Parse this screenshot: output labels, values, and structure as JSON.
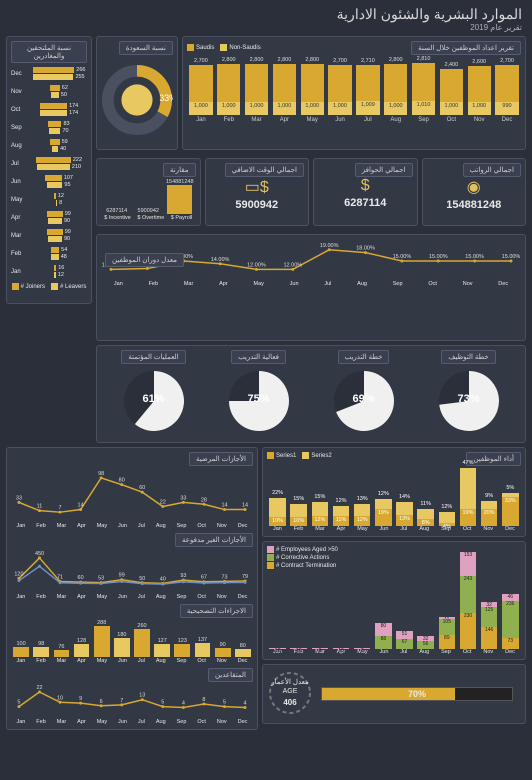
{
  "header": {
    "title": "الموارد البشرية والشئون الادارية",
    "subtitle": "تقرير عام 2019"
  },
  "months": [
    "Jan",
    "Feb",
    "Mar",
    "Apr",
    "May",
    "Jun",
    "Jul",
    "Aug",
    "Sep",
    "Oct",
    "Nov",
    "Dec"
  ],
  "colors": {
    "bg": "#2a2f3a",
    "panel": "#323844",
    "border": "#4a5060",
    "bar1": "#d8a830",
    "bar2": "#e8c860",
    "accent": "#e0c060",
    "line1": "#d8a830",
    "line2": "#7090c0",
    "text": "#e8e8e8",
    "pink": "#e0a0c0",
    "green": "#90b050"
  },
  "headcount": {
    "title": "تقرير اعداد الموظفين خلال السنة",
    "legend": [
      "Saudis",
      "Non-Saudis"
    ],
    "saudis": [
      2700,
      2800,
      2800,
      2800,
      2800,
      2700,
      2710,
      2800,
      2810,
      2400,
      2600,
      2700
    ],
    "nonsaudis": [
      1000,
      1000,
      1000,
      1000,
      1000,
      1000,
      1009,
      1000,
      1010,
      1000,
      1000,
      990
    ]
  },
  "saudization": {
    "title": "نسبة السعودة",
    "pct": 33
  },
  "kpis": {
    "payroll": {
      "title": "اجمالي الرواتب",
      "val": "154881248"
    },
    "incentive": {
      "title": "اجمالي الحوافز",
      "val": "6287114"
    },
    "overtime": {
      "title": "اجمالي الوقت الاضافي",
      "val": "5900942"
    },
    "compare": {
      "title": "مقارنة",
      "labels": [
        "$ Incentive",
        "$ Overtime",
        "$ Payroll"
      ],
      "vals": [
        6287114,
        5900942,
        154881248
      ]
    }
  },
  "turnover": {
    "title": "معدل دوران الموظفين",
    "vals": [
      12.0,
      12.3,
      15.0,
      14.0,
      12.0,
      12.0,
      19.0,
      18.0,
      15.0,
      15.0,
      15.0,
      15.0
    ]
  },
  "pies": {
    "items": [
      {
        "title": "العمليات المؤتمتة",
        "pct": 61
      },
      {
        "title": "فعالية التدريب",
        "pct": 75
      },
      {
        "title": "خطة التدريب",
        "pct": 69
      },
      {
        "title": "خطة التوظيف",
        "pct": 73
      }
    ]
  },
  "joiners_leavers": {
    "title": "نسبة الملتحقين والمغادرين",
    "legend": [
      "# Joiners",
      "# Leavers"
    ],
    "data": [
      {
        "m": "Dec",
        "a": 266,
        "b": 255
      },
      {
        "m": "Nov",
        "a": 62,
        "b": 50
      },
      {
        "m": "Oct",
        "a": 174,
        "b": 174
      },
      {
        "m": "Sep",
        "a": 83,
        "b": 70
      },
      {
        "m": "Aug",
        "a": 59,
        "b": 40
      },
      {
        "m": "Jul",
        "a": 222,
        "b": 210
      },
      {
        "m": "Jun",
        "a": 107,
        "b": 95
      },
      {
        "m": "May",
        "a": 12,
        "b": 8
      },
      {
        "m": "Apr",
        "a": 99,
        "b": 90
      },
      {
        "m": "Mar",
        "a": 99,
        "b": 90
      },
      {
        "m": "Feb",
        "a": 54,
        "b": 48
      },
      {
        "m": "Jan",
        "a": 16,
        "b": 12
      }
    ]
  },
  "sickleave": {
    "title": "الأجازات المرضية",
    "vals": [
      33,
      11,
      7,
      14,
      98,
      80,
      60,
      22,
      33,
      28,
      14,
      14
    ]
  },
  "unpaid": {
    "title": "الأجازات الغير مدفوعة",
    "vals": [
      120,
      450,
      71,
      60,
      53,
      99,
      50,
      40,
      93,
      67,
      73,
      79
    ]
  },
  "corrective": {
    "title": "الاجراءات التصحيحية",
    "vals": [
      100,
      98,
      76,
      128,
      288,
      180,
      260,
      127,
      123,
      137,
      90,
      80
    ]
  },
  "retirement": {
    "title": "المتقاعدين",
    "vals": [
      5,
      22,
      10,
      9,
      6,
      7,
      13,
      5,
      4,
      8,
      5,
      4
    ]
  },
  "performance": {
    "title": "أداء الموظفين",
    "legend": [
      "Series1",
      "Series2"
    ],
    "s1": [
      10,
      10,
      12,
      11,
      12,
      19,
      13,
      8,
      4,
      19,
      20,
      33
    ],
    "s2": [
      22,
      15,
      15,
      12,
      13,
      12,
      14,
      11,
      12,
      47,
      9,
      5
    ]
  },
  "age_stack": {
    "legend": [
      "# Employees Aged >50",
      "# Corrective Actions",
      "# Contract Termination"
    ],
    "emp": [
      10,
      10,
      8,
      10,
      8,
      80,
      51,
      32,
      11,
      153,
      32,
      46
    ],
    "corr": [
      0,
      0,
      0,
      0,
      0,
      88,
      67,
      56,
      105,
      243,
      125,
      236
    ],
    "term": [
      0,
      0,
      0,
      0,
      0,
      0,
      0,
      0,
      89,
      230,
      146,
      73
    ]
  },
  "footer": {
    "age_label": "معدل الأعمار",
    "age_val": "406",
    "pct": 70
  }
}
